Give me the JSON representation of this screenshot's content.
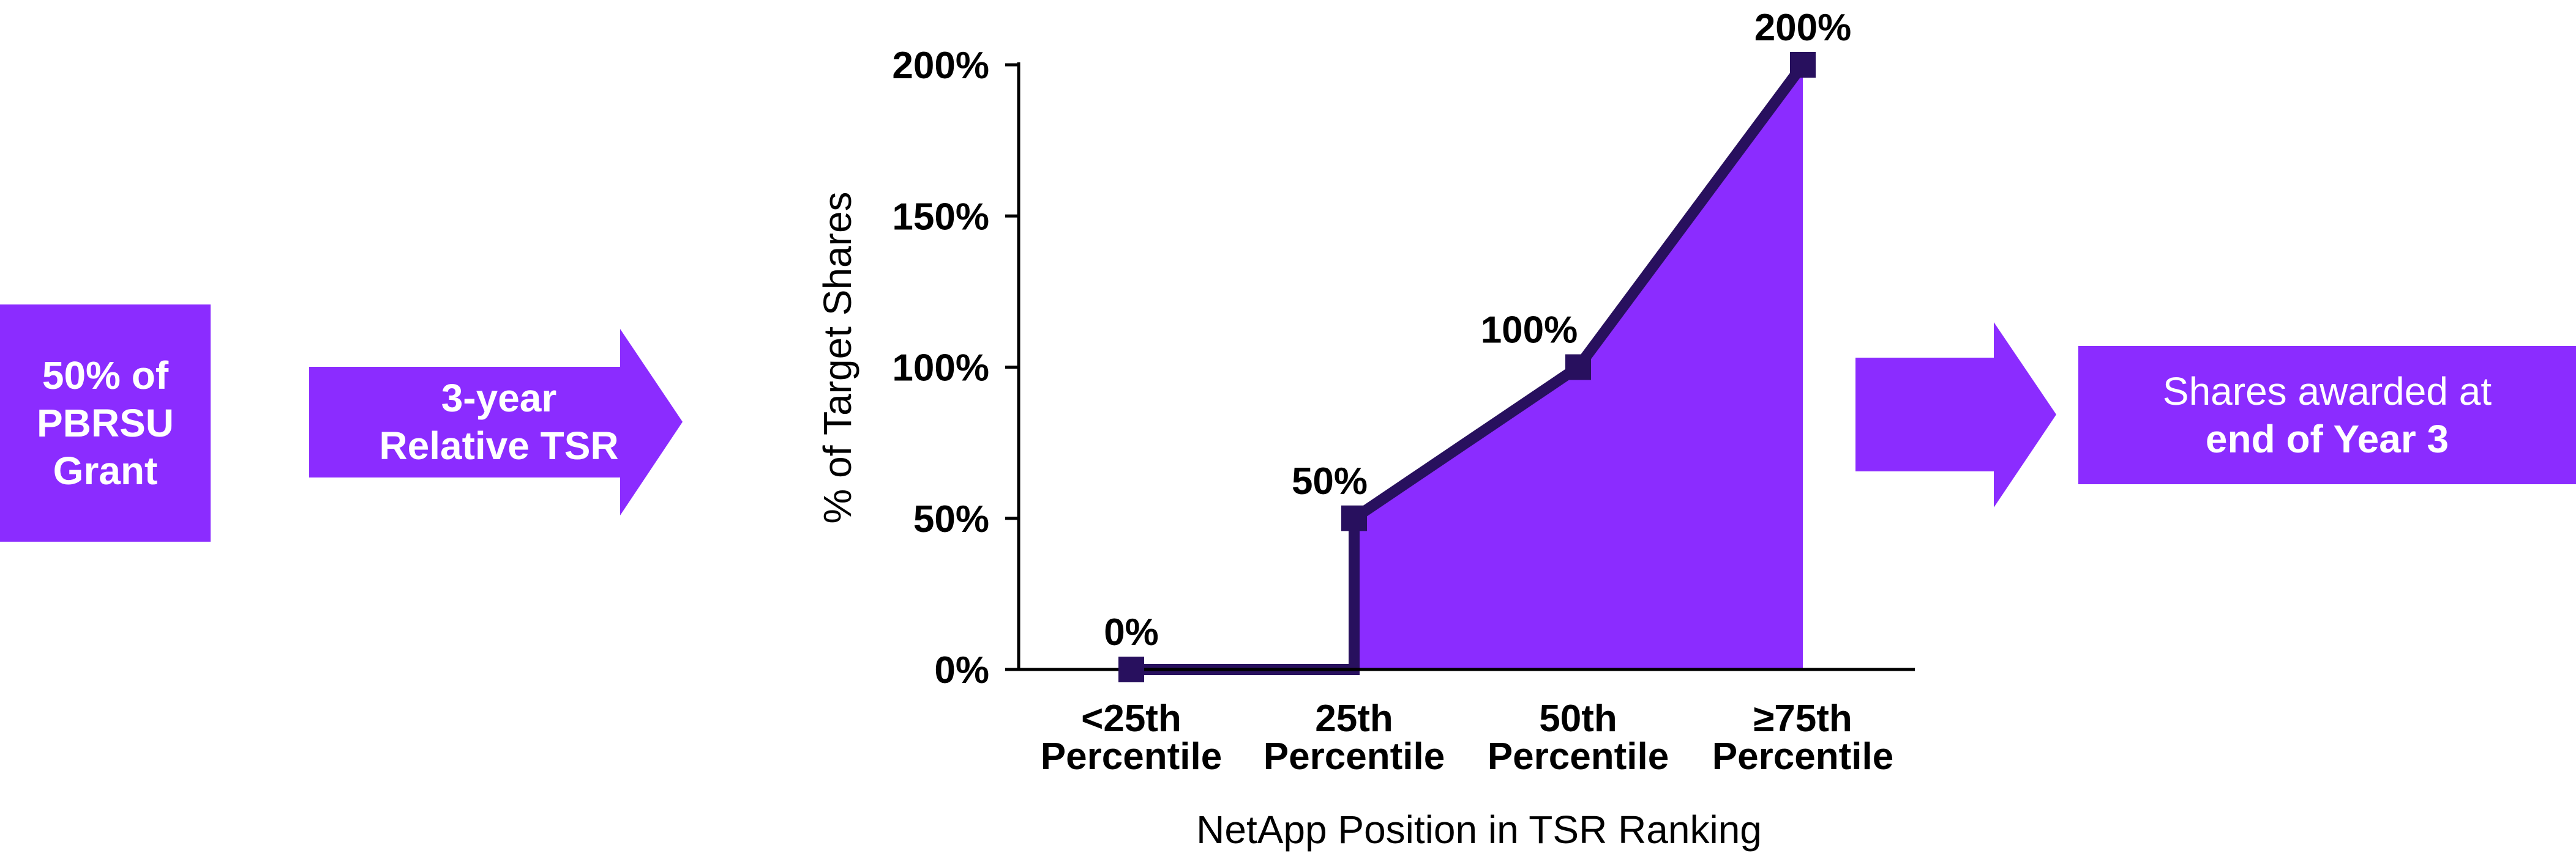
{
  "left_box": {
    "lines": [
      "50% of",
      "PBRSU",
      "Grant"
    ]
  },
  "arrow_1": {
    "lines": [
      "3-year",
      "Relative TSR"
    ]
  },
  "right_box": {
    "line1": "Shares awarded at",
    "line2": "end of Year 3"
  },
  "colors": {
    "fill": "#8b2cff",
    "line": "#28105e",
    "axis": "#000000"
  },
  "chart_data": {
    "type": "area",
    "xlabel": "NetApp Position in TSR Ranking",
    "ylabel": "% of Target Shares",
    "categories": [
      [
        "<25th",
        "Percentile"
      ],
      [
        "25th",
        "Percentile"
      ],
      [
        "50th",
        "Percentile"
      ],
      [
        "≥75th",
        "Percentile"
      ]
    ],
    "values": [
      0,
      50,
      100,
      200
    ],
    "data_labels": [
      "0%",
      "50%",
      "100%",
      "200%"
    ],
    "y_ticks": [
      0,
      50,
      100,
      150,
      200
    ],
    "y_tick_labels": [
      "0%",
      "50%",
      "100%",
      "150%",
      "200%"
    ],
    "ylim": [
      0,
      200
    ],
    "step_before_first_increase": true,
    "grid": false,
    "legend": "none"
  }
}
